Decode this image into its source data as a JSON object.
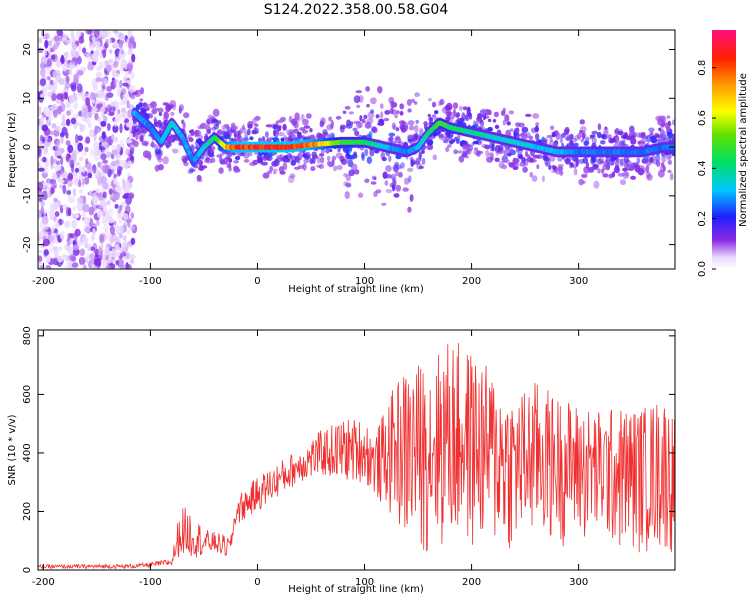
{
  "title": "S124.2022.358.00.58.G04",
  "chart_data": [
    {
      "type": "heatmap",
      "xlabel": "Height of straight line (km)",
      "ylabel": "Frequency (Hz)",
      "xlim": [
        -205,
        390
      ],
      "ylim": [
        -25,
        24
      ],
      "xticks": [
        -200,
        -100,
        0,
        100,
        200,
        300
      ],
      "yticks": [
        -20,
        -10,
        0,
        10,
        20
      ],
      "colorbar": {
        "label": "Normalized spectral amplitude",
        "range": [
          0,
          0.95
        ],
        "ticks": [
          0.0,
          0.2,
          0.4,
          0.6,
          0.8
        ],
        "colormap": "hsv-rainbow (white→purple→blue→cyan→green→yellow→orange→red→magenta)"
      },
      "ridge": {
        "x": [
          -115,
          -100,
          -90,
          -80,
          -70,
          -60,
          -50,
          -40,
          -30,
          -20,
          0,
          30,
          50,
          80,
          100,
          120,
          140,
          150,
          160,
          170,
          180,
          200,
          220,
          240,
          260,
          280,
          300,
          320,
          340,
          360,
          380,
          390
        ],
        "y": [
          7,
          4,
          1,
          5,
          2,
          -3,
          0,
          2,
          0,
          0,
          0,
          0,
          0.5,
          1,
          1,
          0,
          -1,
          0,
          3,
          5,
          4,
          3,
          2,
          1,
          0,
          -1,
          -1,
          -1,
          -1,
          -1,
          0,
          0
        ],
        "amplitude": [
          0.35,
          0.3,
          0.35,
          0.4,
          0.35,
          0.3,
          0.4,
          0.45,
          0.75,
          0.95,
          0.95,
          0.95,
          0.9,
          0.55,
          0.5,
          0.35,
          0.3,
          0.35,
          0.45,
          0.55,
          0.5,
          0.45,
          0.4,
          0.4,
          0.35,
          0.35,
          0.3,
          0.3,
          0.3,
          0.3,
          0.3,
          0.3
        ]
      },
      "noise_region_x": [
        -205,
        -115
      ]
    },
    {
      "type": "line",
      "xlabel": "Height of straight line (km)",
      "ylabel": "SNR (10 * v/v)",
      "xlim": [
        -205,
        390
      ],
      "ylim": [
        0,
        820
      ],
      "xticks": [
        -200,
        -100,
        0,
        100,
        200,
        300
      ],
      "yticks": [
        0,
        200,
        400,
        600,
        800
      ],
      "color": "#f03030",
      "envelope": {
        "x": [
          -205,
          -120,
          -100,
          -80,
          -75,
          -70,
          -60,
          -50,
          -40,
          -30,
          -25,
          -20,
          0,
          20,
          40,
          60,
          80,
          100,
          110,
          130,
          140,
          160,
          180,
          200,
          220,
          240,
          260,
          280,
          300,
          320,
          340,
          360,
          380,
          390
        ],
        "low": [
          5,
          5,
          10,
          15,
          40,
          50,
          40,
          50,
          60,
          40,
          60,
          150,
          200,
          250,
          300,
          320,
          300,
          300,
          250,
          150,
          50,
          50,
          50,
          50,
          50,
          50,
          80,
          80,
          80,
          80,
          50,
          50,
          50,
          50
        ],
        "high": [
          18,
          20,
          25,
          40,
          160,
          220,
          200,
          140,
          130,
          120,
          110,
          250,
          320,
          370,
          420,
          480,
          520,
          520,
          470,
          650,
          700,
          720,
          800,
          750,
          680,
          600,
          650,
          600,
          570,
          550,
          560,
          560,
          600,
          520
        ]
      }
    }
  ]
}
